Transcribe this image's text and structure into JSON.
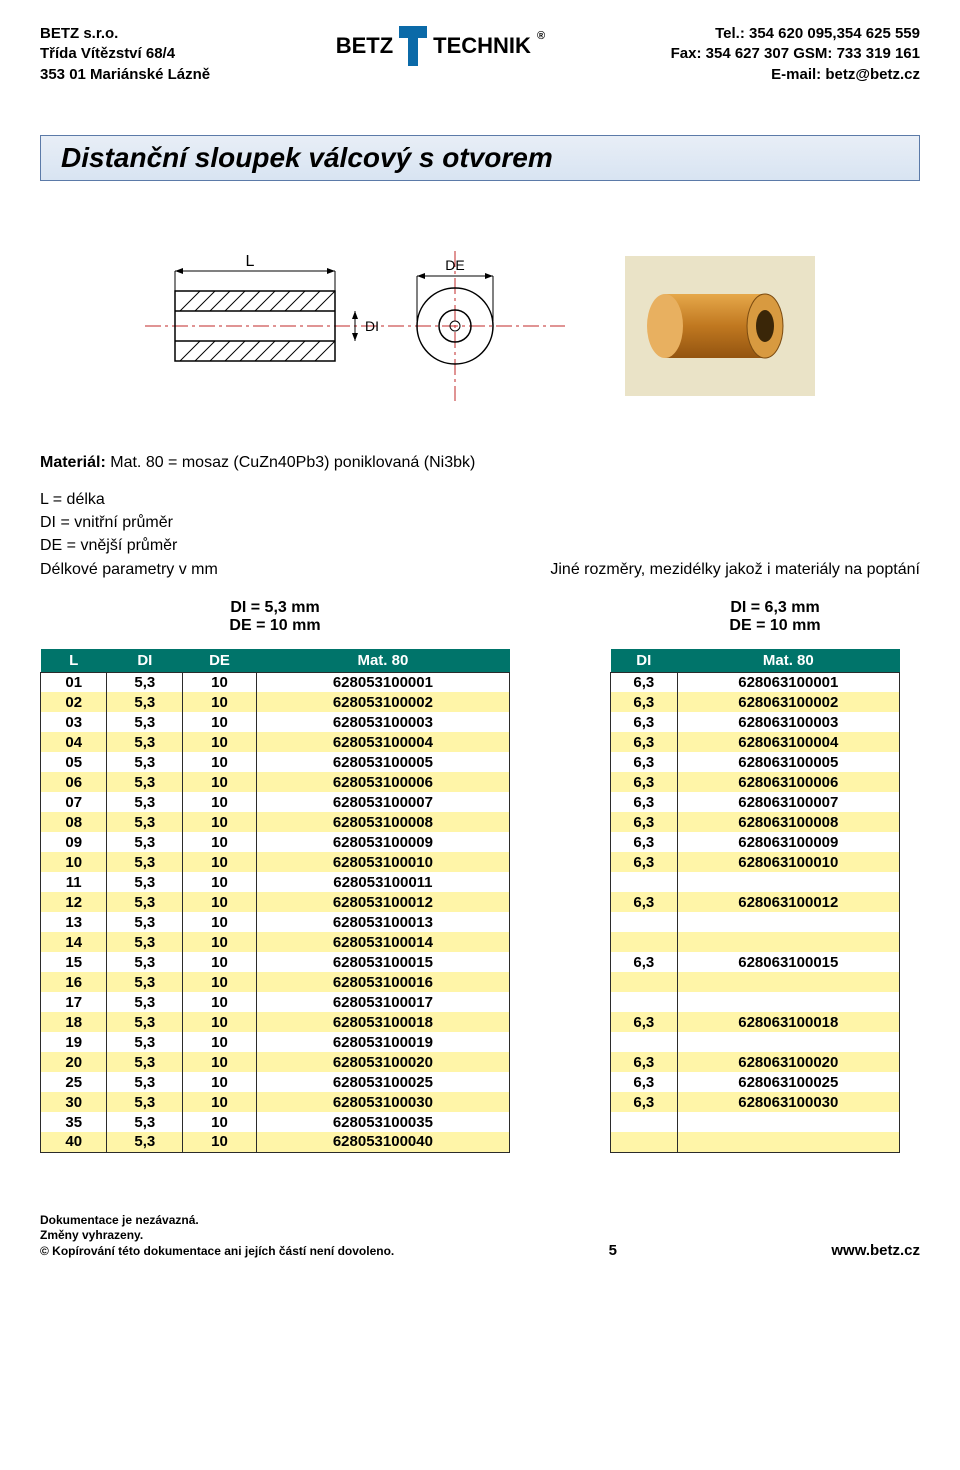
{
  "header": {
    "company": "BETZ s.r.o.",
    "addr1": "Třída Vítězství 68/4",
    "addr2": "353 01 Mariánské Lázně",
    "tel": "Tel.: 354 620 095,354 625 559",
    "fax": "Fax: 354 627 307 GSM: 733 319 161",
    "email": "E-mail: betz@betz.cz",
    "logo_left": "BETZ",
    "logo_right": "TECHNIK",
    "reg": "®"
  },
  "title": "Distanční sloupek válcový s otvorem",
  "diagram": {
    "L": "L",
    "DE": "DE",
    "DI": "DI"
  },
  "specs": {
    "material_label": "Materiál:",
    "material_val": "Mat. 80 = mosaz (CuZn40Pb3) poniklovaná (Ni3bk)",
    "l1": "L = délka",
    "l2": "DI = vnitřní průměr",
    "l3": "DE = vnější průměr",
    "l4": "Délkové parametry v mm",
    "r4": "Jiné rozměry, mezidélky jakož i materiály na poptání"
  },
  "heading_left": {
    "a": "DI = 5,3 mm",
    "b": "DE = 10 mm"
  },
  "heading_right": {
    "a": "DI = 6,3 mm",
    "b": "DE = 10 mm"
  },
  "tableLeft": {
    "cols": [
      "L",
      "DI",
      "DE",
      "Mat. 80"
    ],
    "rows": [
      [
        "01",
        "5,3",
        "10",
        "628053100001"
      ],
      [
        "02",
        "5,3",
        "10",
        "628053100002"
      ],
      [
        "03",
        "5,3",
        "10",
        "628053100003"
      ],
      [
        "04",
        "5,3",
        "10",
        "628053100004"
      ],
      [
        "05",
        "5,3",
        "10",
        "628053100005"
      ],
      [
        "06",
        "5,3",
        "10",
        "628053100006"
      ],
      [
        "07",
        "5,3",
        "10",
        "628053100007"
      ],
      [
        "08",
        "5,3",
        "10",
        "628053100008"
      ],
      [
        "09",
        "5,3",
        "10",
        "628053100009"
      ],
      [
        "10",
        "5,3",
        "10",
        "628053100010"
      ],
      [
        "11",
        "5,3",
        "10",
        "628053100011"
      ],
      [
        "12",
        "5,3",
        "10",
        "628053100012"
      ],
      [
        "13",
        "5,3",
        "10",
        "628053100013"
      ],
      [
        "14",
        "5,3",
        "10",
        "628053100014"
      ],
      [
        "15",
        "5,3",
        "10",
        "628053100015"
      ],
      [
        "16",
        "5,3",
        "10",
        "628053100016"
      ],
      [
        "17",
        "5,3",
        "10",
        "628053100017"
      ],
      [
        "18",
        "5,3",
        "10",
        "628053100018"
      ],
      [
        "19",
        "5,3",
        "10",
        "628053100019"
      ],
      [
        "20",
        "5,3",
        "10",
        "628053100020"
      ],
      [
        "25",
        "5,3",
        "10",
        "628053100025"
      ],
      [
        "30",
        "5,3",
        "10",
        "628053100030"
      ],
      [
        "35",
        "5,3",
        "10",
        "628053100035"
      ],
      [
        "40",
        "5,3",
        "10",
        "628053100040"
      ]
    ]
  },
  "tableRight": {
    "cols": [
      "DI",
      "Mat. 80"
    ],
    "rows": [
      [
        "6,3",
        "628063100001"
      ],
      [
        "6,3",
        "628063100002"
      ],
      [
        "6,3",
        "628063100003"
      ],
      [
        "6,3",
        "628063100004"
      ],
      [
        "6,3",
        "628063100005"
      ],
      [
        "6,3",
        "628063100006"
      ],
      [
        "6,3",
        "628063100007"
      ],
      [
        "6,3",
        "628063100008"
      ],
      [
        "6,3",
        "628063100009"
      ],
      [
        "6,3",
        "628063100010"
      ],
      [
        "",
        ""
      ],
      [
        "6,3",
        "628063100012"
      ],
      [
        "",
        ""
      ],
      [
        "",
        ""
      ],
      [
        "6,3",
        "628063100015"
      ],
      [
        "",
        ""
      ],
      [
        "",
        ""
      ],
      [
        "6,3",
        "628063100018"
      ],
      [
        "",
        ""
      ],
      [
        "6,3",
        "628063100020"
      ],
      [
        "6,3",
        "628063100025"
      ],
      [
        "6,3",
        "628063100030"
      ],
      [
        "",
        ""
      ],
      [
        "",
        ""
      ]
    ]
  },
  "footer": {
    "l1": "Dokumentace je nezávazná.",
    "l2": "Změny vyhrazeny.",
    "l3": "© Kopírování této dokumentace ani jejích částí není dovoleno.",
    "page": "5",
    "url": "www.betz.cz"
  },
  "colors": {
    "header_bg": "#00746a",
    "alt_row": "#fff5a8",
    "title_border": "#5b7aa8"
  }
}
